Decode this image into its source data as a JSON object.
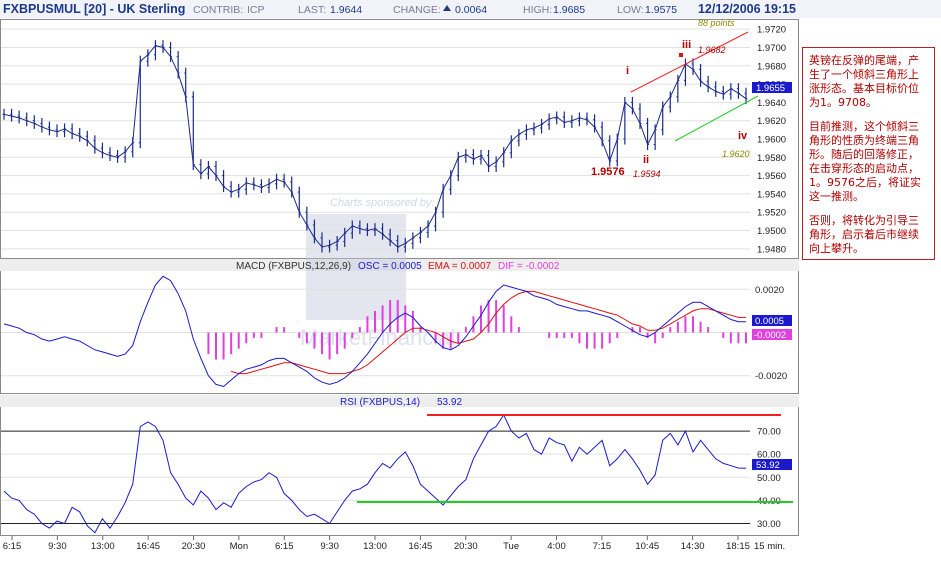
{
  "header": {
    "symbol": "FXBPUSMUL [20] - UK Sterling",
    "contrib_label": "CONTRIB:",
    "contrib_value": "ICP",
    "last_label": "LAST:",
    "last_value": "1.9644",
    "change_label": "CHANGE:",
    "change_value": "0.0064",
    "high_label": "HIGH:",
    "high_value": "1.9685",
    "low_label": "LOW:",
    "low_value": "1.9575",
    "datetime": "12/12/2006 19:15"
  },
  "colors": {
    "price": "#1c2a8c",
    "macd": "#1a1acc",
    "ema": "#dd1111",
    "dif": "#e040e0",
    "rsi": "#1a1acc",
    "annotation": "#b00000",
    "support": "#22cc22",
    "resistance": "#ee2222",
    "label_box": "#1a1acc",
    "header_text": "#1c3a8c"
  },
  "chart_data": [
    {
      "type": "line",
      "title": "FXBPUSMUL [20] - UK Sterling",
      "subtype": "ohlc-bars",
      "x_ticks": [
        "6:15",
        "9:30",
        "13:00",
        "16:45",
        "20:30",
        "Mon",
        "6:15",
        "9:30",
        "13:00",
        "16:45",
        "20:30",
        "Tue",
        "4:00",
        "7:15",
        "10:45",
        "14:30",
        "18:15"
      ],
      "x_unit": "15 min.",
      "y_ticks": [
        "1.9720",
        "1.9700",
        "1.9680",
        "1.9660",
        "1.9640",
        "1.9620",
        "1.9600",
        "1.9580",
        "1.9560",
        "1.9540",
        "1.9520",
        "1.9500",
        "1.9480"
      ],
      "ylim": [
        1.947,
        1.973
      ],
      "current_value_label": "1.9655",
      "close": [
        1.9627,
        1.9625,
        1.9623,
        1.962,
        1.9617,
        1.9613,
        1.961,
        1.9608,
        1.9611,
        1.9606,
        1.9603,
        1.9598,
        1.959,
        1.9585,
        1.9582,
        1.958,
        1.9586,
        1.9596,
        1.9685,
        1.9692,
        1.9702,
        1.97,
        1.969,
        1.9672,
        1.9646,
        1.9572,
        1.9562,
        1.957,
        1.956,
        1.9548,
        1.9542,
        1.9545,
        1.9552,
        1.955,
        1.9547,
        1.9551,
        1.9556,
        1.9553,
        1.9542,
        1.952,
        1.9506,
        1.9492,
        1.9482,
        1.9484,
        1.9488,
        1.9497,
        1.9505,
        1.9502,
        1.95,
        1.9502,
        1.9496,
        1.9489,
        1.9482,
        1.9486,
        1.9492,
        1.9498,
        1.9505,
        1.952,
        1.9545,
        1.956,
        1.958,
        1.9583,
        1.9578,
        1.9582,
        1.957,
        1.9575,
        1.9585,
        1.9598,
        1.9605,
        1.961,
        1.9612,
        1.9616,
        1.9622,
        1.9624,
        1.9618,
        1.962,
        1.9623,
        1.9621,
        1.9613,
        1.9598,
        1.9576,
        1.96,
        1.964,
        1.9633,
        1.9617,
        1.9594,
        1.961,
        1.9635,
        1.9646,
        1.9664,
        1.9682,
        1.9676,
        1.9663,
        1.9657,
        1.9652,
        1.9649,
        1.9655,
        1.965,
        1.9644
      ],
      "annotations": [
        {
          "text": "i"
        },
        {
          "text": "ii"
        },
        {
          "text": "iii"
        },
        {
          "text": "iv"
        },
        {
          "text": "1.9576"
        },
        {
          "text": "1.9594"
        },
        {
          "text": "1.9682"
        },
        {
          "text": "1.9620"
        },
        {
          "text": "88  points"
        }
      ]
    },
    {
      "type": "line",
      "title": "MACD (FXBPUS,12,26,9)",
      "legend": [
        {
          "label": "OSC = 0.0005",
          "key": "macd"
        },
        {
          "label": "EMA = 0.0007",
          "key": "ema"
        },
        {
          "label": "DIF = -0.0002",
          "key": "dif"
        }
      ],
      "y_ticks": [
        "0.0020",
        "0.0000",
        "-0.0020"
      ],
      "ylim": [
        -0.0028,
        0.0028
      ],
      "value_labels": [
        "0.0005",
        "-0.0002"
      ],
      "series": [
        {
          "name": "OSC",
          "values": [
            0.0004,
            0.0003,
            0.0002,
            0.0,
            -0.0001,
            -0.0003,
            -0.0004,
            -0.0003,
            -0.0002,
            -0.0003,
            -0.0004,
            -0.0006,
            -0.0008,
            -0.0009,
            -0.001,
            -0.0011,
            -0.001,
            -0.0006,
            0.0005,
            0.0014,
            0.0022,
            0.0026,
            0.0024,
            0.0018,
            0.001,
            -0.0003,
            -0.0012,
            -0.002,
            -0.0024,
            -0.0025,
            -0.0022,
            -0.0019,
            -0.0017,
            -0.0016,
            -0.0015,
            -0.0013,
            -0.0012,
            -0.0012,
            -0.0014,
            -0.0016,
            -0.0018,
            -0.0021,
            -0.0023,
            -0.0024,
            -0.0023,
            -0.0021,
            -0.0018,
            -0.0014,
            -0.001,
            -0.0005,
            0.0,
            0.0004,
            0.0007,
            0.0009,
            0.0007,
            0.0003,
            0.0,
            -0.0004,
            -0.0007,
            -0.0008,
            -0.0006,
            -0.0002,
            0.0003,
            0.0008,
            0.0014,
            0.0019,
            0.0022,
            0.0021,
            0.002,
            0.0019,
            0.0017,
            0.0016,
            0.0015,
            0.0013,
            0.0012,
            0.0011,
            0.001,
            0.001,
            0.0009,
            0.0008,
            0.0007,
            0.0005,
            0.0003,
            0.0001,
            -0.0001,
            -0.0002,
            0.0,
            0.0003,
            0.0006,
            0.0009,
            0.0012,
            0.0014,
            0.0014,
            0.0012,
            0.001,
            0.0008,
            0.0006,
            0.0005,
            0.0005
          ]
        },
        {
          "name": "EMA",
          "values": [
            null,
            null,
            null,
            null,
            null,
            null,
            null,
            null,
            null,
            null,
            null,
            null,
            null,
            null,
            null,
            null,
            null,
            null,
            null,
            null,
            null,
            null,
            null,
            null,
            null,
            null,
            null,
            null,
            null,
            null,
            -0.0018,
            -0.0019,
            -0.0019,
            -0.0018,
            -0.0017,
            -0.0016,
            -0.0015,
            -0.0014,
            -0.0014,
            -0.0015,
            -0.0016,
            -0.0017,
            -0.0018,
            -0.0019,
            -0.0019,
            -0.0019,
            -0.0018,
            -0.0017,
            -0.0015,
            -0.0012,
            -0.0009,
            -0.0006,
            -0.0003,
            0.0,
            0.0002,
            0.0002,
            0.0001,
            0.0,
            -0.0002,
            -0.0004,
            -0.0005,
            -0.0004,
            -0.0003,
            0.0,
            0.0004,
            0.0009,
            0.0013,
            0.0016,
            0.0018,
            0.0019,
            0.0019,
            0.0018,
            0.0017,
            0.0016,
            0.0015,
            0.0014,
            0.0013,
            0.0012,
            0.0011,
            0.001,
            0.0009,
            0.0008,
            0.0006,
            0.0004,
            0.0003,
            0.0001,
            0.0001,
            0.0002,
            0.0004,
            0.0006,
            0.0008,
            0.001,
            0.0011,
            0.0011,
            0.001,
            0.0009,
            0.0008,
            0.0007,
            0.0007
          ]
        },
        {
          "name": "DIF",
          "values": [
            null,
            null,
            null,
            null,
            null,
            null,
            null,
            null,
            null,
            null,
            null,
            null,
            null,
            null,
            null,
            null,
            null,
            null,
            null,
            null,
            null,
            null,
            null,
            null,
            null,
            null,
            null,
            -0.0004,
            -0.0005,
            -0.0005,
            -0.0004,
            -0.0003,
            -0.0002,
            -0.0001,
            -0.0001,
            0.0,
            0.0001,
            0.0001,
            0.0,
            -0.0001,
            -0.0002,
            -0.0003,
            -0.0004,
            -0.0005,
            -0.0004,
            -0.0003,
            -0.0001,
            0.0001,
            0.0003,
            0.0004,
            0.0005,
            0.0006,
            0.0006,
            0.0005,
            0.0004,
            0.0001,
            0.0,
            -0.0002,
            -0.0003,
            -0.0003,
            -0.0002,
            0.0001,
            0.0003,
            0.0005,
            0.0006,
            0.0006,
            0.0005,
            0.0003,
            0.0001,
            0.0,
            0.0,
            0.0,
            -0.0001,
            -0.0001,
            -0.0001,
            -0.0001,
            -0.0002,
            -0.0003,
            -0.0003,
            -0.0003,
            -0.0002,
            -0.0001,
            0.0,
            0.0001,
            0.0001,
            -0.0001,
            -0.0002,
            -0.0001,
            0.0001,
            0.0002,
            0.0003,
            0.0003,
            0.0002,
            0.0001,
            0.0,
            -0.0001,
            -0.0002,
            -0.0002,
            -0.0002
          ]
        }
      ]
    },
    {
      "type": "line",
      "title": "RSI (FXBPUS,14)",
      "current": "53.92",
      "y_ticks": [
        "70.00",
        "60.00",
        "50.00",
        "40.00",
        "30.00"
      ],
      "ylim": [
        25,
        80
      ],
      "value_label": "53.92",
      "reference_lines": [
        70,
        30
      ],
      "values": [
        44,
        41,
        40,
        36,
        34,
        30,
        28,
        31,
        30,
        37,
        35,
        29,
        26,
        32,
        28,
        33,
        39,
        47,
        72,
        74,
        72,
        66,
        52,
        47,
        41,
        38,
        44,
        41,
        36,
        39,
        37,
        43,
        46,
        48,
        49,
        52,
        50,
        43,
        40,
        36,
        33,
        34,
        32,
        30,
        35,
        40,
        44,
        45,
        47,
        52,
        56,
        54,
        58,
        61,
        55,
        47,
        44,
        41,
        38,
        42,
        46,
        49,
        58,
        64,
        70,
        72,
        77,
        70,
        67,
        69,
        62,
        60,
        67,
        65,
        64,
        57,
        63,
        60,
        63,
        66,
        55,
        58,
        62,
        58,
        53,
        47,
        51,
        66,
        69,
        64,
        70,
        61,
        66,
        62,
        58,
        56,
        55,
        54,
        53.92
      ]
    }
  ],
  "annotation_text": {
    "p1": "英镑在反弹的尾端，产生了一个倾斜三角形上涨形态。基本目标价位为1。9708。",
    "p2": "目前推测，这个倾斜三角形的性质为终端三角形。随后的回落修正，在击穿形态的启动点，1。9576之后，将证实这一推测。",
    "p3": "否则，将转化为引导三角形，启示着后市继续向上攀升。"
  },
  "watermark": {
    "sponsor": "Charts sponsored by:",
    "brand": "MarketFinancial"
  }
}
